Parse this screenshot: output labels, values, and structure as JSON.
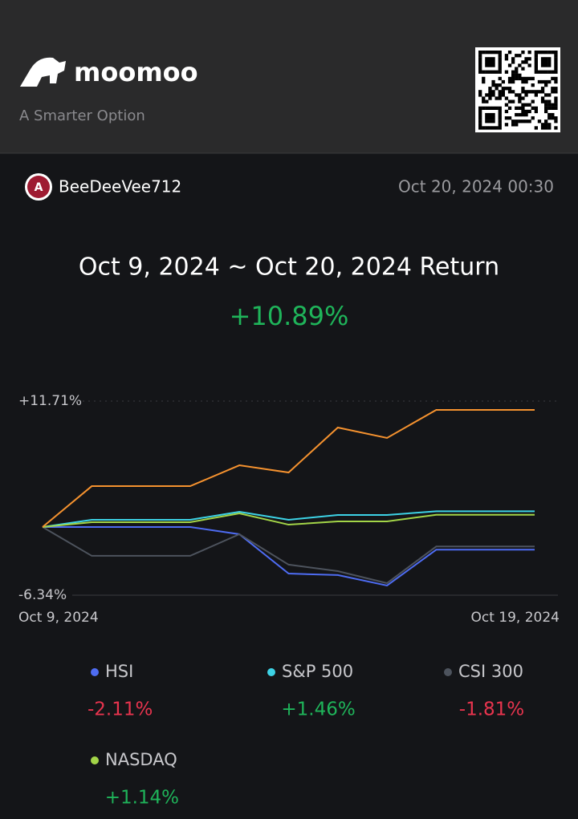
{
  "header": {
    "brand": "moomoo",
    "tagline": "A Smarter Option"
  },
  "post": {
    "user": "BeeDeeVee712",
    "time": "Oct 20, 2024 00:30"
  },
  "chart_data": {
    "type": "line",
    "title": "Oct 9, 2024 ~ Oct 20, 2024 Return",
    "return": 10.89,
    "return_label": "+10.89%",
    "categories": [
      "Oct 9, 2024",
      null,
      null,
      null,
      null,
      null,
      null,
      null,
      null,
      null,
      "Oct 19, 2024"
    ],
    "ylim": [
      -6.34,
      11.71
    ],
    "yticks": [
      {
        "value": 11.71,
        "label": "+11.71%"
      },
      {
        "value": -6.34,
        "label": "-6.34%"
      }
    ],
    "grid": true,
    "series": [
      {
        "name": "HSI",
        "color": "#4e6cf2",
        "change": -2.11,
        "change_label": "-2.11%",
        "values": [
          0,
          0,
          0,
          0,
          -0.67,
          -4.33,
          -4.47,
          -5.44,
          -2.11,
          -2.11,
          -2.11
        ]
      },
      {
        "name": "S&P 500",
        "color": "#3dd3e6",
        "change": 1.46,
        "change_label": "+1.46%",
        "values": [
          0,
          0.67,
          0.67,
          0.67,
          1.42,
          0.67,
          1.12,
          1.12,
          1.46,
          1.46,
          1.46
        ]
      },
      {
        "name": "CSI 300",
        "color": "#4d535d",
        "change": -1.81,
        "change_label": "-1.81%",
        "values": [
          0,
          -2.68,
          -2.68,
          -2.68,
          -0.67,
          -3.5,
          -4.1,
          -5.22,
          -1.81,
          -1.81,
          -1.81
        ]
      },
      {
        "name": "NASDAQ",
        "color": "#a3d548",
        "change": 1.14,
        "change_label": "+1.14%",
        "values": [
          0,
          0.45,
          0.45,
          0.45,
          1.27,
          0.22,
          0.52,
          0.52,
          1.14,
          1.14,
          1.14
        ]
      },
      {
        "color": "#f5922f",
        "values": [
          0,
          3.8,
          3.8,
          3.8,
          5.74,
          5.07,
          9.25,
          8.28,
          10.89,
          10.89,
          10.89
        ]
      }
    ]
  }
}
